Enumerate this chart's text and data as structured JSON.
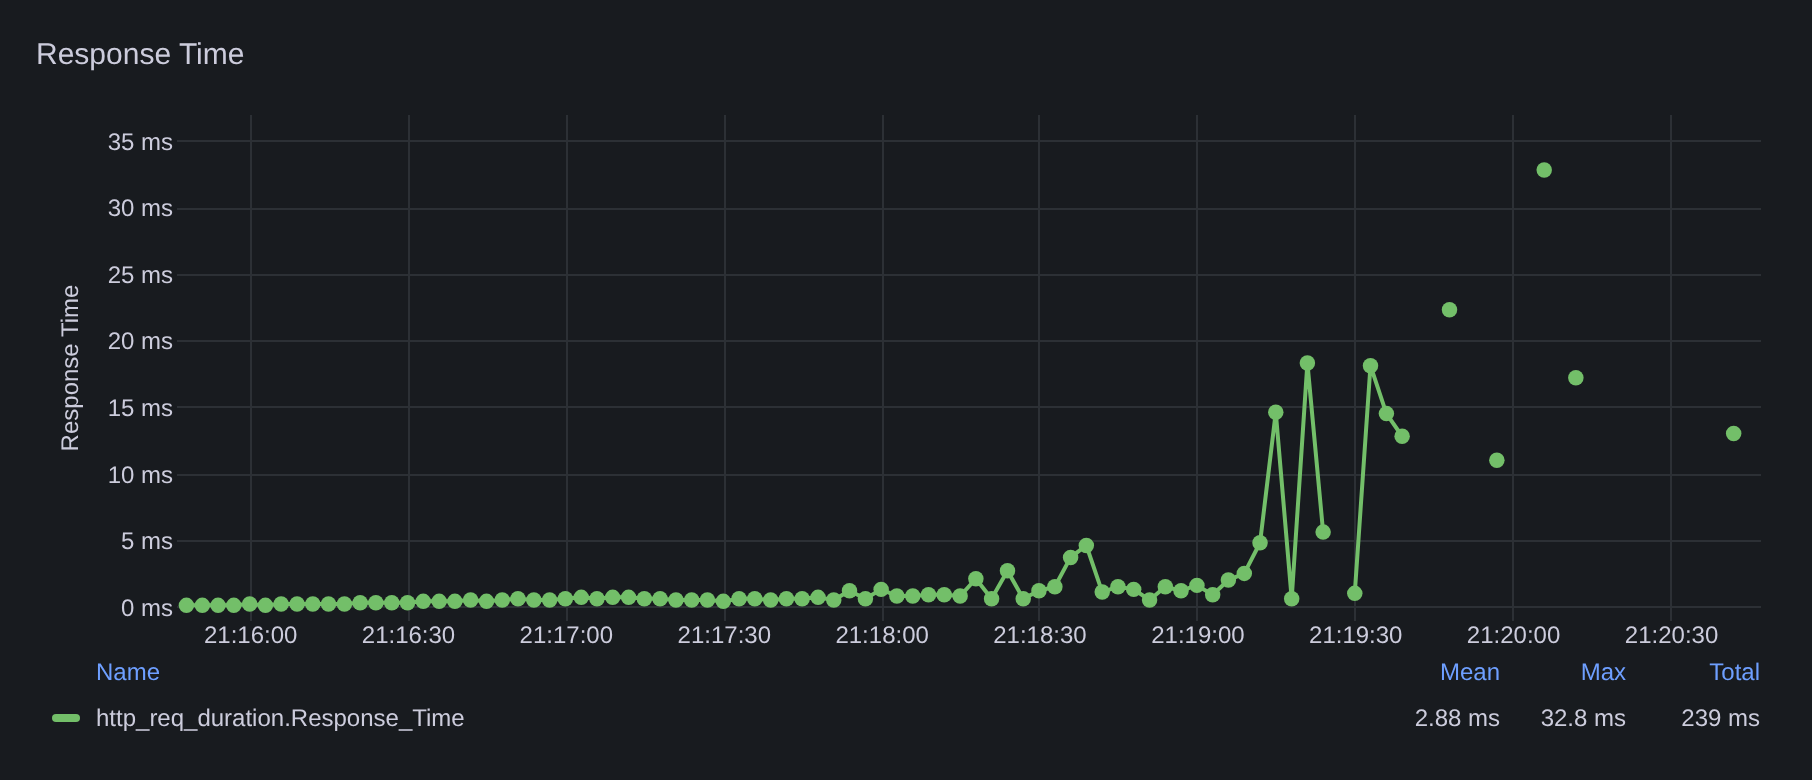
{
  "chart_data": {
    "type": "line",
    "title": "Response Time",
    "ylabel": "Response Time",
    "x": [
      21.26333,
      21.26417,
      21.265,
      21.26583,
      21.26667,
      21.2675,
      21.26833,
      21.26917,
      21.27,
      21.27083,
      21.27167,
      21.2725,
      21.27333,
      21.27417,
      21.275,
      21.27583,
      21.27667,
      21.2775,
      21.27833,
      21.27917,
      21.28,
      21.28083,
      21.28167,
      21.2825,
      21.28333,
      21.28417,
      21.285,
      21.28583,
      21.28667,
      21.2875,
      21.28833,
      21.28917,
      21.29,
      21.29083,
      21.29167,
      21.2925,
      21.29333,
      21.29417,
      21.295,
      21.29583,
      21.29667,
      21.2975,
      21.29833,
      21.29917,
      21.3,
      21.30083,
      21.30167,
      21.3025,
      21.30333,
      21.30417,
      21.305,
      21.30583,
      21.30667,
      21.3075,
      21.30833,
      21.30917,
      21.31,
      21.31083,
      21.31167,
      21.3125,
      21.31333,
      21.31417,
      21.315,
      21.31583,
      21.31667,
      21.3175,
      21.31833,
      21.31917,
      21.32,
      21.32083,
      21.32167,
      21.3225,
      21.32333,
      21.32417,
      21.325,
      21.32583,
      21.32667,
      21.3275,
      21.32833,
      21.33,
      21.33083,
      21.3325,
      21.33333,
      21.335,
      21.33583,
      21.33667,
      21.3375,
      21.345
    ],
    "series": [
      {
        "name": "http_req_duration.Response_Time",
        "color": "#73bf69",
        "values": [
          0.1,
          0.1,
          0.1,
          0.1,
          0.2,
          0.1,
          0.2,
          0.2,
          0.2,
          0.2,
          0.2,
          0.3,
          0.3,
          0.3,
          0.3,
          0.4,
          0.4,
          0.4,
          0.5,
          0.4,
          0.5,
          0.6,
          0.5,
          0.5,
          0.6,
          0.7,
          0.6,
          0.7,
          0.7,
          0.6,
          0.6,
          0.5,
          0.5,
          0.5,
          0.4,
          0.6,
          0.6,
          0.5,
          0.6,
          0.6,
          0.7,
          0.5,
          1.2,
          0.6,
          1.3,
          0.8,
          0.8,
          0.9,
          0.9,
          0.8,
          2.1,
          0.6,
          2.7,
          0.6,
          1.2,
          1.5,
          3.7,
          4.6,
          1.1,
          1.5,
          1.3,
          0.5,
          1.5,
          1.2,
          1.6,
          0.9,
          2.0,
          2.5,
          4.8,
          14.6,
          0.6,
          18.3,
          5.6,
          null,
          1.0,
          18.1,
          14.5,
          12.8,
          null,
          22.3,
          null,
          11.0,
          null,
          32.8,
          null,
          17.2,
          null,
          13.0
        ]
      }
    ],
    "xlim": [
      21.26278,
      21.34639
    ],
    "xticks": [
      {
        "value": 21.26667,
        "label": "21:16:00"
      },
      {
        "value": 21.275,
        "label": "21:16:30"
      },
      {
        "value": 21.28333,
        "label": "21:17:00"
      },
      {
        "value": 21.29167,
        "label": "21:17:30"
      },
      {
        "value": 21.3,
        "label": "21:18:00"
      },
      {
        "value": 21.30833,
        "label": "21:18:30"
      },
      {
        "value": 21.31667,
        "label": "21:19:00"
      },
      {
        "value": 21.325,
        "label": "21:19:30"
      },
      {
        "value": 21.33333,
        "label": "21:20:00"
      },
      {
        "value": 21.34167,
        "label": "21:20:30"
      }
    ],
    "ylim": [
      -1,
      37
    ],
    "yticks": [
      {
        "value": 0,
        "label": "0 ms"
      },
      {
        "value": 5,
        "label": "5 ms"
      },
      {
        "value": 10,
        "label": "10 ms"
      },
      {
        "value": 15,
        "label": "15 ms"
      },
      {
        "value": 20,
        "label": "20 ms"
      },
      {
        "value": 25,
        "label": "25 ms"
      },
      {
        "value": 30,
        "label": "30 ms"
      },
      {
        "value": 35,
        "label": "35 ms"
      }
    ],
    "grid": true,
    "legend": "bottom",
    "marker": "circle",
    "line_style": "solid",
    "annotations": [
      "Name",
      "Mean",
      "Max",
      "Total",
      "2.88 ms",
      "32.8 ms",
      "239 ms"
    ]
  }
}
